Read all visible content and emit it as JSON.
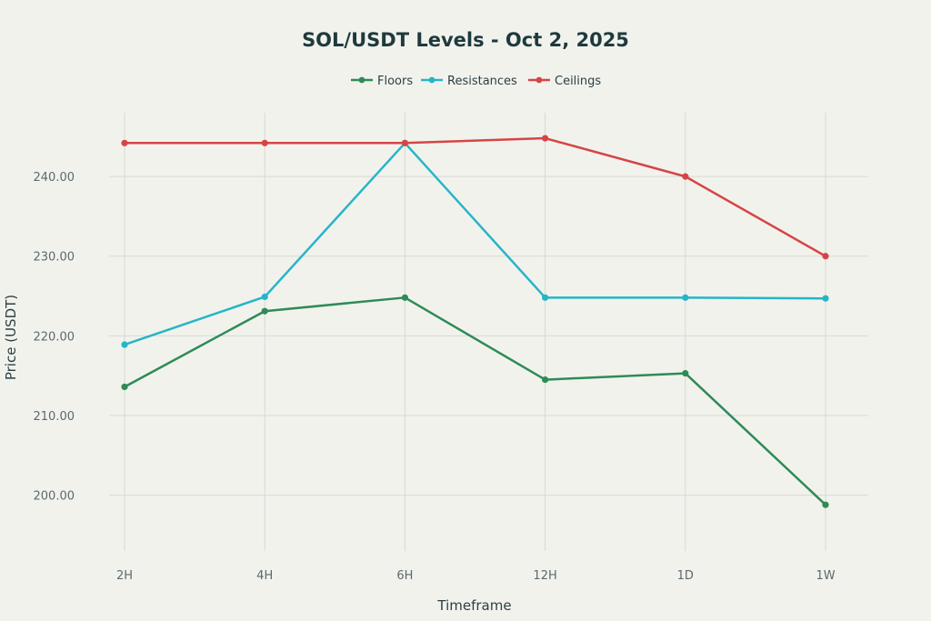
{
  "chart_data": {
    "type": "line",
    "title": "SOL/USDT Levels - Oct 2, 2025",
    "xlabel": "Timeframe",
    "ylabel": "Price (USDT)",
    "categories": [
      "2H",
      "4H",
      "6H",
      "12H",
      "1D",
      "1W"
    ],
    "ylim": [
      193,
      248
    ],
    "yticks": [
      200,
      210,
      220,
      230,
      240
    ],
    "ytick_labels": [
      "200.00",
      "210.00",
      "220.00",
      "230.00",
      "240.00"
    ],
    "grid": true,
    "legend_position": "top-center",
    "series": [
      {
        "name": "Floors",
        "color": "#2e8b57",
        "values": [
          213.6,
          223.1,
          224.8,
          214.5,
          215.3,
          198.8
        ]
      },
      {
        "name": "Resistances",
        "color": "#26b5c8",
        "values": [
          218.9,
          224.9,
          244.2,
          224.8,
          224.8,
          224.7
        ]
      },
      {
        "name": "Ceilings",
        "color": "#d64545",
        "values": [
          244.2,
          244.2,
          244.2,
          244.8,
          240.0,
          230.0
        ]
      }
    ]
  }
}
